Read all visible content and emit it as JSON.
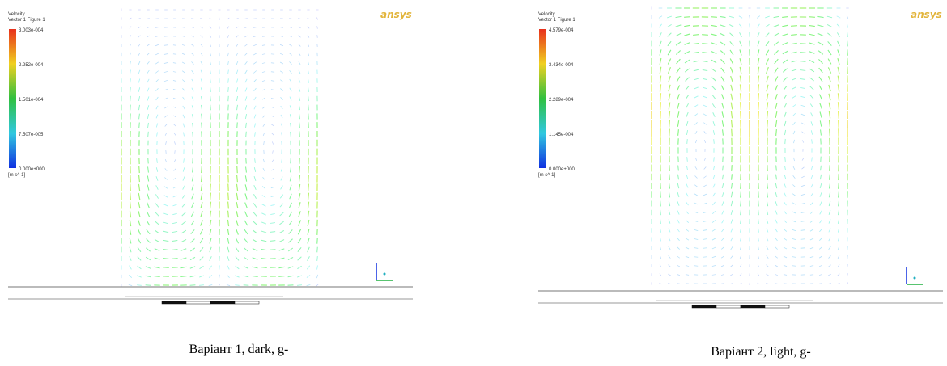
{
  "panels": [
    {
      "legend": {
        "title": "Velocity",
        "subtitle": "Vector 1 Figure 1",
        "ticks": [
          "3.003e-004",
          "2.252e-004",
          "1.501e-004",
          "7.507e-005",
          "0.000e+000"
        ],
        "unit": "[m s^-1]"
      },
      "logo": "ansys",
      "caption": "Варіант 1, dark, g-"
    },
    {
      "legend": {
        "title": "Velocity",
        "subtitle": "Vector 1 Figure 1",
        "ticks": [
          "4.579e-004",
          "3.434e-004",
          "2.289e-004",
          "1.145e-004",
          "0.000e+000"
        ],
        "unit": "[m s^-1]"
      },
      "logo": "ansys",
      "caption": "Варіант 2, light, g-"
    }
  ]
}
